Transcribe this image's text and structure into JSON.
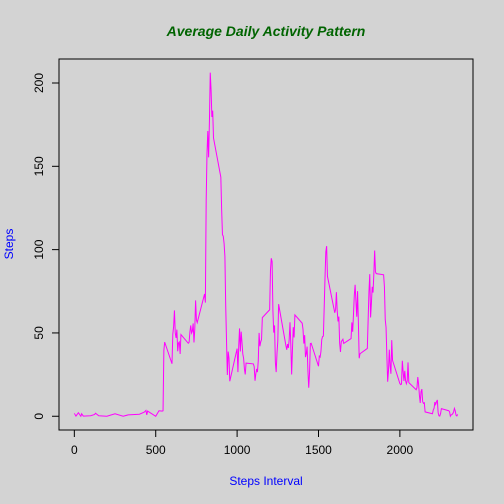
{
  "chart_data": {
    "type": "line",
    "title": "Average Daily Activity Pattern",
    "x_label": "Steps Interval",
    "y_label": "Steps",
    "x": [
      0,
      10,
      25,
      40,
      45,
      55,
      100,
      125,
      130,
      150,
      200,
      250,
      300,
      330,
      400,
      430,
      440,
      445,
      450,
      500,
      520,
      540,
      545,
      550,
      555,
      600,
      605,
      610,
      615,
      620,
      625,
      630,
      635,
      640,
      645,
      650,
      655,
      700,
      705,
      710,
      715,
      720,
      725,
      730,
      735,
      740,
      745,
      750,
      755,
      800,
      805,
      810,
      815,
      820,
      825,
      830,
      835,
      840,
      845,
      850,
      855,
      900,
      905,
      910,
      915,
      920,
      925,
      930,
      935,
      940,
      945,
      950,
      955,
      1000,
      1005,
      1010,
      1015,
      1020,
      1025,
      1030,
      1035,
      1040,
      1045,
      1050,
      1055,
      1100,
      1105,
      1110,
      1115,
      1120,
      1125,
      1130,
      1135,
      1140,
      1145,
      1150,
      1155,
      1200,
      1205,
      1210,
      1215,
      1220,
      1225,
      1230,
      1235,
      1240,
      1245,
      1250,
      1255,
      1300,
      1305,
      1310,
      1315,
      1320,
      1325,
      1330,
      1335,
      1340,
      1345,
      1350,
      1355,
      1400,
      1405,
      1410,
      1415,
      1420,
      1425,
      1430,
      1435,
      1440,
      1445,
      1450,
      1455,
      1500,
      1505,
      1510,
      1515,
      1520,
      1525,
      1530,
      1535,
      1540,
      1545,
      1550,
      1555,
      1600,
      1605,
      1610,
      1615,
      1620,
      1625,
      1630,
      1635,
      1640,
      1645,
      1650,
      1655,
      1700,
      1705,
      1710,
      1715,
      1720,
      1725,
      1730,
      1735,
      1740,
      1745,
      1750,
      1755,
      1800,
      1805,
      1810,
      1815,
      1820,
      1825,
      1830,
      1835,
      1840,
      1845,
      1850,
      1855,
      1900,
      1905,
      1910,
      1915,
      1920,
      1925,
      1930,
      1935,
      1940,
      1945,
      1950,
      1955,
      2000,
      2005,
      2010,
      2015,
      2020,
      2025,
      2030,
      2035,
      2040,
      2045,
      2050,
      2055,
      2100,
      2105,
      2110,
      2115,
      2120,
      2125,
      2130,
      2135,
      2140,
      2145,
      2150,
      2155,
      2200,
      2205,
      2210,
      2215,
      2220,
      2225,
      2230,
      2235,
      2240,
      2245,
      2250,
      2255,
      2300,
      2305,
      2310,
      2315,
      2320,
      2325,
      2330,
      2335,
      2340,
      2345,
      2350,
      2355
    ],
    "series": [
      {
        "color": "#ff00ff",
        "values": [
          1.7,
          0.1,
          2.1,
          0,
          1.5,
          0.1,
          0.3,
          1.1,
          1.8,
          0.3,
          0,
          1.5,
          0,
          0.8,
          1.2,
          2.5,
          3.5,
          0.8,
          3.1,
          0,
          3.3,
          3.1,
          3.3,
          39.5,
          44.5,
          31.5,
          49.3,
          53.8,
          63.5,
          50,
          47,
          52,
          39,
          44,
          44.6,
          37.4,
          49,
          43.8,
          44.4,
          50.5,
          54.5,
          49.9,
          51,
          55.7,
          44.3,
          52.3,
          69.5,
          57.8,
          56.2,
          73.4,
          68.2,
          129.4,
          157.5,
          171.2,
          155.4,
          177.3,
          206.2,
          195.9,
          179.6,
          183.4,
          167,
          143.5,
          124,
          109,
          108,
          103.7,
          95.9,
          66.2,
          45.2,
          24.8,
          38.8,
          35,
          21,
          40.6,
          26.5,
          42.4,
          52.7,
          38.9,
          50.8,
          44.3,
          37.4,
          34.7,
          28.3,
          25.1,
          31.9,
          31.4,
          29.7,
          21.3,
          25.5,
          28.4,
          26.5,
          33.4,
          50,
          42,
          44.6,
          46,
          59.2,
          63.9,
          87.7,
          94.8,
          92.8,
          63.4,
          50.2,
          54.5,
          32.4,
          26.5,
          37.7,
          45.1,
          67.3,
          42.3,
          39.9,
          43.3,
          41,
          46.2,
          56.4,
          42.8,
          25.1,
          40,
          53.5,
          47.3,
          60.8,
          55.8,
          52,
          43.6,
          48.7,
          35.5,
          37.5,
          41.8,
          27.5,
          17.1,
          26.1,
          43.6,
          43.8,
          30,
          36.1,
          35.5,
          38.8,
          46,
          47.8,
          48.1,
          65.3,
          82.9,
          98.7,
          102.1,
          84,
          62.1,
          64.1,
          74.5,
          63.2,
          56.9,
          59.8,
          43.9,
          38.6,
          44.7,
          45.5,
          46.2,
          43.7,
          46.6,
          56.3,
          50.7,
          61.2,
          72.7,
          78.9,
          68.9,
          59.7,
          75.1,
          56.5,
          34.8,
          37.5,
          40.7,
          58,
          74.7,
          85.3,
          59.3,
          67.8,
          77.7,
          74.2,
          85.3,
          99.5,
          86.6,
          85.6,
          84.9,
          77.8,
          58,
          53.4,
          36.3,
          20.7,
          27.4,
          40,
          30.2,
          25.5,
          45.7,
          33.5,
          19.6,
          19,
          19.3,
          33.3,
          26.8,
          21.2,
          27.3,
          21.3,
          19.5,
          21.3,
          32.3,
          20.2,
          15.9,
          17.2,
          23.5,
          19.2,
          12.5,
          8,
          14.7,
          16.3,
          8.7,
          7.8,
          8.1,
          2.6,
          1.5,
          3.7,
          4.8,
          8.5,
          7.1,
          8.7,
          9.8,
          2.2,
          0.3,
          0.1,
          1.6,
          4.6,
          3.3,
          2.8,
          0,
          0.8,
          1,
          1.6,
          2.6,
          4.7,
          3.3,
          0.6,
          0.2,
          1.1
        ]
      }
    ],
    "xlim": [
      -94.2,
      2449.2
    ],
    "ylim": [
      -8.25,
      214.4
    ],
    "xticks": [
      0,
      500,
      1000,
      1500,
      2000
    ],
    "yticks": [
      0,
      50,
      100,
      150,
      200
    ]
  }
}
